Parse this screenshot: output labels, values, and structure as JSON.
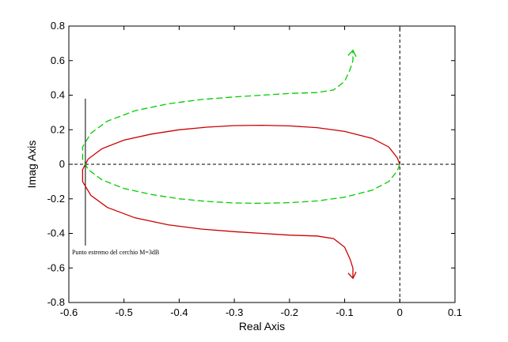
{
  "chart_data": {
    "type": "line",
    "xlabel": "Real Axis",
    "ylabel": "Imag Axis",
    "xlim": [
      -0.6,
      0.1
    ],
    "ylim": [
      -0.8,
      0.8
    ],
    "xticks": [
      "-0.6",
      "-0.5",
      "-0.4",
      "-0.3",
      "-0.2",
      "-0.1",
      "0",
      "0.1"
    ],
    "yticks": [
      "-0.8",
      "-0.6",
      "-0.4",
      "-0.2",
      "0",
      "0.2",
      "0.4",
      "0.6",
      "0.8"
    ],
    "grid": false,
    "reference_lines": [
      {
        "orientation": "horizontal",
        "value": 0,
        "style": "dashed",
        "color": "#000000"
      },
      {
        "orientation": "vertical",
        "value": 0,
        "style": "dashed",
        "color": "#000000"
      },
      {
        "orientation": "vertical",
        "value": -0.57,
        "from": -0.47,
        "to": 0.38,
        "style": "solid",
        "color": "#000000"
      }
    ],
    "annotation": "Punto estremo del cerchio M=3dB",
    "series": [
      {
        "color": "#cc0000",
        "style": "solid",
        "points": [
          [
            0,
            0
          ],
          [
            -0.005,
            0.04
          ],
          [
            -0.02,
            0.1
          ],
          [
            -0.05,
            0.15
          ],
          [
            -0.1,
            0.19
          ],
          [
            -0.15,
            0.212
          ],
          [
            -0.2,
            0.222
          ],
          [
            -0.25,
            0.226
          ],
          [
            -0.3,
            0.224
          ],
          [
            -0.35,
            0.215
          ],
          [
            -0.4,
            0.2
          ],
          [
            -0.45,
            0.175
          ],
          [
            -0.5,
            0.14
          ],
          [
            -0.54,
            0.09
          ],
          [
            -0.565,
            0.03
          ],
          [
            -0.575,
            -0.03
          ],
          [
            -0.575,
            -0.1
          ],
          [
            -0.56,
            -0.18
          ],
          [
            -0.53,
            -0.25
          ],
          [
            -0.48,
            -0.31
          ],
          [
            -0.42,
            -0.35
          ],
          [
            -0.36,
            -0.375
          ],
          [
            -0.3,
            -0.39
          ],
          [
            -0.25,
            -0.4
          ],
          [
            -0.2,
            -0.41
          ],
          [
            -0.15,
            -0.415
          ],
          [
            -0.12,
            -0.43
          ],
          [
            -0.1,
            -0.48
          ],
          [
            -0.09,
            -0.55
          ],
          [
            -0.085,
            -0.6
          ],
          [
            -0.085,
            -0.66
          ]
        ],
        "arrow_end": true
      },
      {
        "color": "#00cc00",
        "style": "dashed",
        "points": [
          [
            0,
            0
          ],
          [
            -0.005,
            -0.04
          ],
          [
            -0.02,
            -0.1
          ],
          [
            -0.05,
            -0.15
          ],
          [
            -0.1,
            -0.19
          ],
          [
            -0.15,
            -0.212
          ],
          [
            -0.2,
            -0.222
          ],
          [
            -0.25,
            -0.226
          ],
          [
            -0.3,
            -0.224
          ],
          [
            -0.35,
            -0.215
          ],
          [
            -0.4,
            -0.2
          ],
          [
            -0.45,
            -0.175
          ],
          [
            -0.5,
            -0.14
          ],
          [
            -0.54,
            -0.09
          ],
          [
            -0.565,
            -0.03
          ],
          [
            -0.575,
            0.03
          ],
          [
            -0.575,
            0.1
          ],
          [
            -0.56,
            0.18
          ],
          [
            -0.53,
            0.25
          ],
          [
            -0.48,
            0.31
          ],
          [
            -0.42,
            0.35
          ],
          [
            -0.36,
            0.375
          ],
          [
            -0.3,
            0.39
          ],
          [
            -0.25,
            0.4
          ],
          [
            -0.2,
            0.41
          ],
          [
            -0.15,
            0.415
          ],
          [
            -0.12,
            0.43
          ],
          [
            -0.1,
            0.48
          ],
          [
            -0.09,
            0.55
          ],
          [
            -0.085,
            0.6
          ],
          [
            -0.085,
            0.66
          ]
        ],
        "arrow_end": true
      }
    ]
  }
}
